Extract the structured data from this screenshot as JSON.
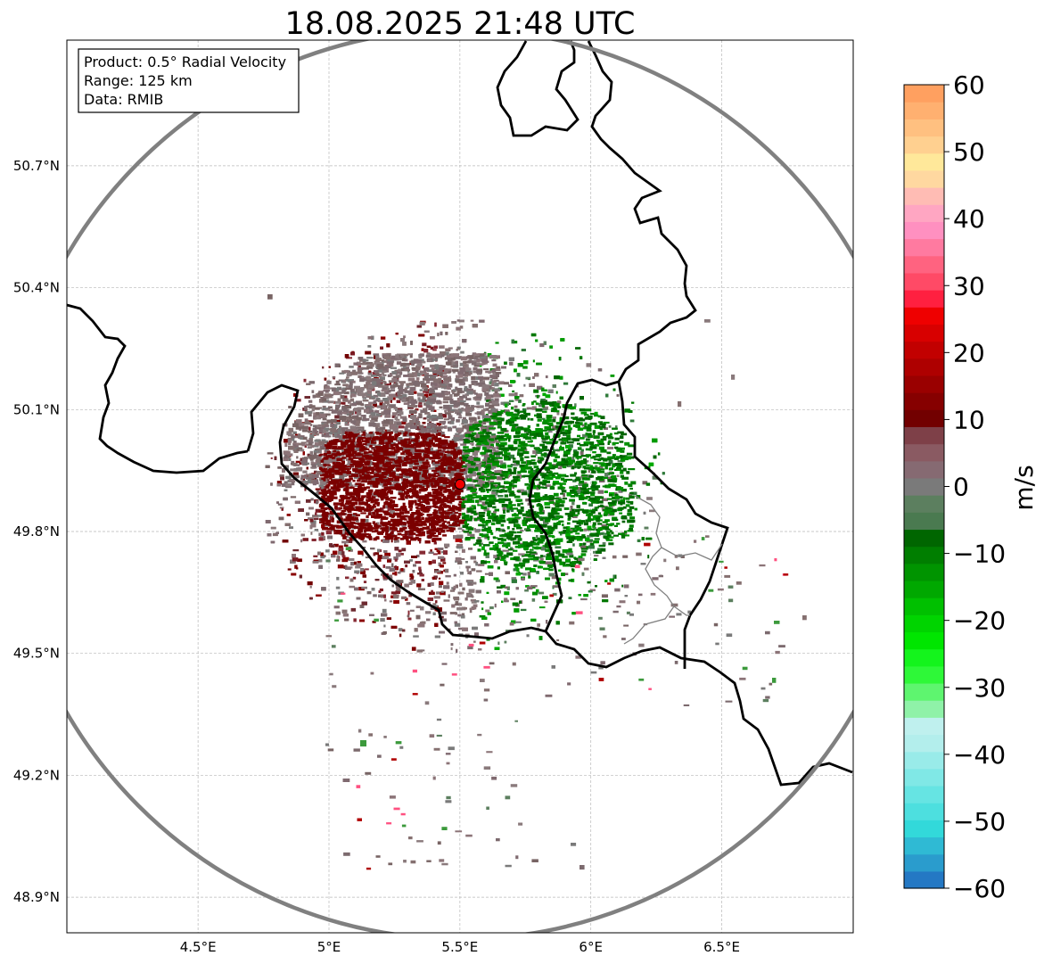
{
  "title": "18.08.2025 21:48 UTC",
  "info_box": {
    "product": "Product: 0.5° Radial Velocity",
    "range": "Range: 125 km",
    "data": "Data: RMIB"
  },
  "map": {
    "lon_range": [
      4.0,
      7.0
    ],
    "lat_range": [
      48.8,
      51.0
    ],
    "radar_site": {
      "lon": 5.505,
      "lat": 49.915
    },
    "lon_ticks": [
      {
        "value": 4.5,
        "label": "4.5°E"
      },
      {
        "value": 5.0,
        "label": "5°E"
      },
      {
        "value": 5.5,
        "label": "5.5°E"
      },
      {
        "value": 6.0,
        "label": "6°E"
      },
      {
        "value": 6.5,
        "label": "6.5°E"
      }
    ],
    "lat_ticks": [
      {
        "value": 50.7,
        "label": "50.7°N"
      },
      {
        "value": 50.4,
        "label": "50.4°N"
      },
      {
        "value": 50.1,
        "label": "50.1°N"
      },
      {
        "value": 49.8,
        "label": "49.8°N"
      },
      {
        "value": 49.5,
        "label": "49.5°N"
      },
      {
        "value": 49.2,
        "label": "49.2°N"
      },
      {
        "value": 48.9,
        "label": "48.9°N"
      }
    ],
    "gridlines": true
  },
  "colorbar": {
    "unit": "m/s",
    "vmin": -60,
    "vmax": 60,
    "ticks": [
      "60",
      "50",
      "40",
      "30",
      "20",
      "10",
      "0",
      "−10",
      "−20",
      "−30",
      "−40",
      "−50",
      "−60"
    ],
    "tick_values": [
      60,
      50,
      40,
      30,
      20,
      10,
      0,
      -10,
      -20,
      -30,
      -40,
      -50,
      -60
    ],
    "colors_bottom_to_top": [
      "#2478c4",
      "#2a9ccd",
      "#2fbad4",
      "#32d9da",
      "#4ddfdf",
      "#66e4e3",
      "#80e8e6",
      "#99ebe9",
      "#b3eeec",
      "#bff0ee",
      "#8ff2a8",
      "#5ef56f",
      "#2ef838",
      "#14f41c",
      "#00e600",
      "#00d400",
      "#00c000",
      "#00a800",
      "#009400",
      "#007e00",
      "#006600",
      "#4a7a50",
      "#5c7f5f",
      "#7a7a7a",
      "#866a72",
      "#8a5a62",
      "#7e4048",
      "#720000",
      "#860000",
      "#9a0000",
      "#ae0000",
      "#c20000",
      "#d80000",
      "#ef0000",
      "#ff2040",
      "#ff4a66",
      "#ff6380",
      "#ff7aa0",
      "#ff90c0",
      "#ffa6c2",
      "#ffbcb4",
      "#ffd8a0",
      "#ffe89a",
      "#ffd090",
      "#ffc080",
      "#ffb070",
      "#ffa060"
    ]
  }
}
